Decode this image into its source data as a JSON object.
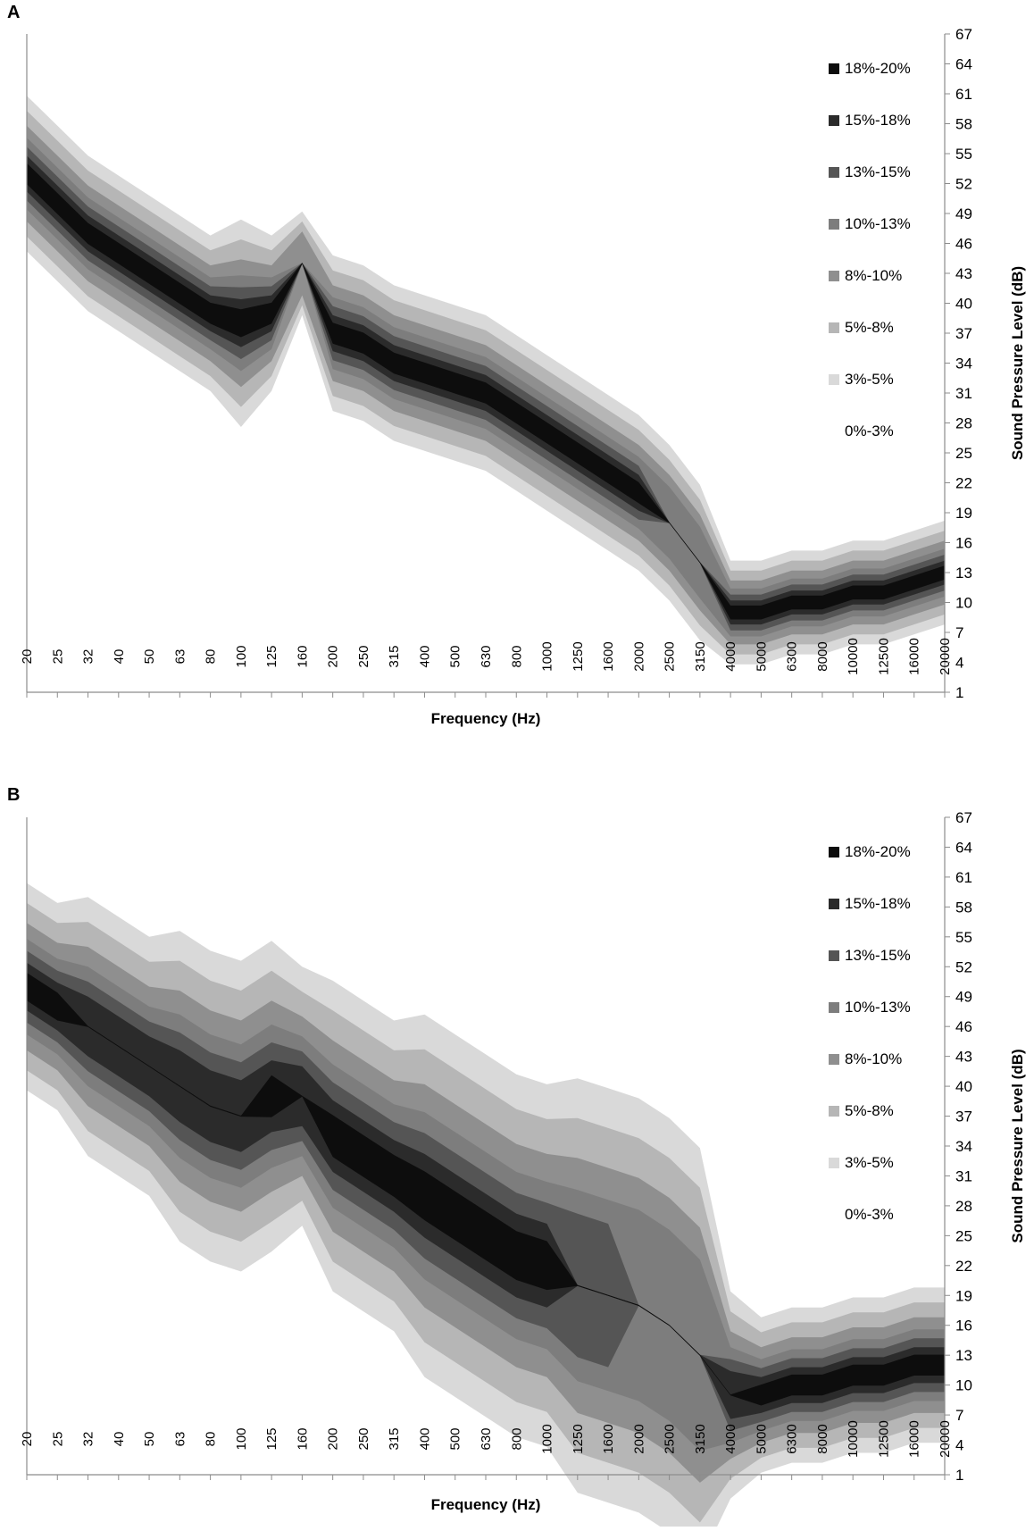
{
  "chart_data": [
    {
      "panel_label": "A",
      "type": "heatmap",
      "xlabel": "Frequency (Hz)",
      "ylabel": "Sound Pressure Level (dB)",
      "x_categories": [
        "20",
        "25",
        "32",
        "40",
        "50",
        "63",
        "80",
        "100",
        "125",
        "160",
        "200",
        "250",
        "315",
        "400",
        "500",
        "630",
        "800",
        "1000",
        "1250",
        "1600",
        "2000",
        "2500",
        "3150",
        "4000",
        "5000",
        "6300",
        "8000",
        "10000",
        "12500",
        "16000",
        "20000"
      ],
      "y_ticks": [
        1,
        4,
        7,
        10,
        13,
        16,
        19,
        22,
        25,
        28,
        31,
        34,
        37,
        40,
        43,
        46,
        49,
        52,
        55,
        58,
        61,
        64,
        67
      ],
      "ylim": [
        1,
        67
      ],
      "legend": [
        "18%-20%",
        "15%-18%",
        "13%-15%",
        "10%-13%",
        "8%-10%",
        "5%-8%",
        "3%-5%",
        "0%-3%"
      ],
      "legend_position": "top-right",
      "ridge_spl_db": [
        53,
        50,
        47,
        45,
        43,
        41,
        39,
        38,
        39,
        44,
        37,
        36,
        34,
        33,
        32,
        31,
        29,
        27,
        25,
        23,
        21,
        18,
        14,
        9,
        9,
        10,
        10,
        11,
        11,
        12,
        13
      ],
      "ridge_width_db": [
        3,
        3,
        3,
        3,
        3,
        3,
        3,
        4,
        3,
        2,
        3,
        3,
        3,
        3,
        3,
        3,
        3,
        3,
        3,
        3,
        3,
        3,
        3,
        2,
        2,
        2,
        2,
        2,
        2,
        2,
        2
      ],
      "ridge_peak_share": [
        20,
        20,
        20,
        19,
        19,
        19,
        18,
        19,
        19,
        8,
        18,
        18,
        19,
        19,
        19,
        19,
        18,
        19,
        19,
        18,
        19,
        12,
        10,
        19,
        19,
        18,
        18,
        18,
        18,
        18,
        18
      ]
    },
    {
      "panel_label": "B",
      "type": "heatmap",
      "xlabel": "Frequency (Hz)",
      "ylabel": "Sound Pressure Level (dB)",
      "x_categories": [
        "20",
        "25",
        "32",
        "40",
        "50",
        "63",
        "80",
        "100",
        "125",
        "160",
        "200",
        "250",
        "315",
        "400",
        "500",
        "630",
        "800",
        "1000",
        "1250",
        "1600",
        "2000",
        "2500",
        "3150",
        "4000",
        "5000",
        "6300",
        "8000",
        "10000",
        "12500",
        "16000",
        "20000"
      ],
      "y_ticks": [
        1,
        4,
        7,
        10,
        13,
        16,
        19,
        22,
        25,
        28,
        31,
        34,
        37,
        40,
        43,
        46,
        49,
        52,
        55,
        58,
        61,
        64,
        67
      ],
      "ylim": [
        1,
        67
      ],
      "legend": [
        "18%-20%",
        "15%-18%",
        "13%-15%",
        "10%-13%",
        "8%-10%",
        "5%-8%",
        "3%-5%",
        "0%-3%"
      ],
      "legend_position": "top-right",
      "ridge_spl_db": [
        50,
        48,
        46,
        44,
        42,
        40,
        38,
        37,
        39,
        39,
        35,
        33,
        31,
        29,
        27,
        25,
        23,
        22,
        20,
        19,
        18,
        16,
        13,
        9,
        9,
        10,
        10,
        11,
        11,
        12,
        12
      ],
      "ridge_width_db": [
        4,
        4,
        5,
        5,
        5,
        6,
        6,
        6,
        6,
        5,
        6,
        6,
        6,
        7,
        7,
        7,
        7,
        7,
        8,
        8,
        8,
        8,
        8,
        4,
        3,
        3,
        3,
        3,
        3,
        3,
        3
      ],
      "ridge_peak_share": [
        18,
        18,
        16,
        16,
        16,
        15,
        17,
        17,
        19,
        16,
        19,
        19,
        18,
        19,
        19,
        19,
        18,
        18,
        14,
        13,
        12,
        11,
        11,
        15,
        18,
        18,
        18,
        18,
        18,
        18,
        18
      ]
    }
  ],
  "colors": {
    "level_colors": [
      "#0d0d0d",
      "#2b2b2b",
      "#555555",
      "#7d7d7d",
      "#8f8f8f",
      "#b6b6b6",
      "#d9d9d9",
      "#ffffff"
    ],
    "axis": "#8c8c8c",
    "text": "#000000"
  }
}
